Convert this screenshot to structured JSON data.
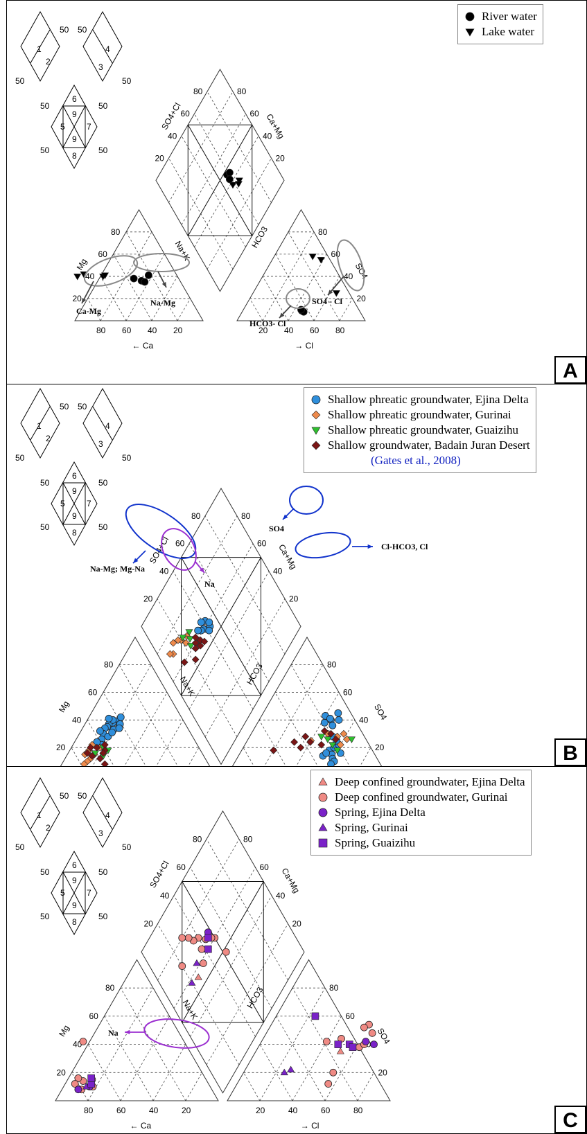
{
  "common": {
    "ticks": [
      "20",
      "40",
      "60",
      "80"
    ],
    "mini": {
      "d1": [
        "1",
        "2"
      ],
      "d2": [
        "4",
        "3"
      ],
      "d3": [
        "6",
        "9",
        "7",
        "5",
        "9",
        "8"
      ],
      "fifty": "50"
    },
    "axes": {
      "mg": "Mg",
      "ca": "Ca",
      "nak": "Na+K",
      "hco3": "HCO3",
      "so4": "SO4",
      "cl": "Cl",
      "so4cl": "SO4+Cl",
      "camg": "Ca+Mg"
    }
  },
  "colors": {
    "blue": "#2f8fdc",
    "orange": "#ee8a4c",
    "green": "#2fbf2f",
    "darkred": "#7a1515",
    "salmon": "#ef8a84",
    "purple": "#7a22c8",
    "ellipse_blue": "#1133cc",
    "ellipse_purple": "#9b2fd0",
    "ellipse_gray": "#888888"
  },
  "panels": [
    {
      "id": "A",
      "label": "A",
      "legend": [
        {
          "symbol": "circle",
          "color": "#000000",
          "text": "River water"
        },
        {
          "symbol": "triangle-down",
          "color": "#000000",
          "text": "Lake water"
        }
      ],
      "annotations": {
        "cation": [
          "Ca-Mg",
          "Na-Mg"
        ],
        "anion": [
          "SO4 - Cl",
          "HCO3- Cl"
        ]
      },
      "chart_data": {
        "type": "scatter",
        "series": [
          {
            "name": "River water",
            "symbol": "circle",
            "cation": [
              [
                35,
                38
              ],
              [
                30,
                36
              ],
              [
                22,
                41
              ],
              [
                28,
                35
              ]
            ],
            "anion": [
              [
                46,
                9
              ],
              [
                48,
                8
              ],
              [
                45,
                10
              ]
            ],
            "diamond": [
              [
                47,
                58
              ],
              [
                46,
                61
              ],
              [
                43,
                58
              ]
            ]
          },
          {
            "name": "Lake water",
            "symbol": "triangle-down",
            "cation": [
              [
                58,
                40
              ],
              [
                72,
                42
              ],
              [
                78,
                40
              ],
              [
                56,
                41
              ]
            ],
            "anion": [
              [
                38,
                55
              ],
              [
                30,
                58
              ],
              [
                65,
                25
              ]
            ],
            "diamond": [
              [
                35,
                65
              ],
              [
                34,
                63
              ],
              [
                38,
                58
              ]
            ]
          }
        ]
      }
    },
    {
      "id": "B",
      "label": "B",
      "legend": [
        {
          "symbol": "circle",
          "color": "#2f8fdc",
          "text": "Shallow phreatic groundwater, Ejina Delta"
        },
        {
          "symbol": "diamond",
          "color": "#ee8a4c",
          "text": "Shallow phreatic groundwater, Gurinai"
        },
        {
          "symbol": "triangle-down",
          "color": "#2fbf2f",
          "text": "Shallow phreatic groundwater, Guaizihu"
        },
        {
          "symbol": "diamond",
          "color": "#7a1515",
          "text": "Shallow groundwater, Badain Juran Desert"
        }
      ],
      "legend_note": "(Gates et al., 2008)",
      "annotations": {
        "cation": [
          "Na-Mg; Mg-Na",
          "Na"
        ],
        "anion": [
          "SO4",
          "Cl-HCO3, Cl"
        ]
      },
      "chart_data": {
        "type": "scatter",
        "series": [
          {
            "name": "Shallow phreatic groundwater, Ejina Delta",
            "symbol": "circle",
            "cation": [
              [
                40,
                40
              ],
              [
                45,
                38
              ],
              [
                42,
                36
              ],
              [
                48,
                37
              ],
              [
                50,
                35
              ],
              [
                38,
                42
              ],
              [
                44,
                40
              ],
              [
                52,
                34
              ],
              [
                55,
                30
              ],
              [
                47,
                33
              ],
              [
                53,
                28
              ],
              [
                58,
                26
              ],
              [
                60,
                22
              ],
              [
                46,
                41
              ],
              [
                41,
                37
              ],
              [
                56,
                32
              ],
              [
                62,
                24
              ],
              [
                49,
                31
              ],
              [
                43,
                34
              ]
            ],
            "anion": [
              [
                42,
                38
              ],
              [
                45,
                40
              ],
              [
                40,
                43
              ],
              [
                48,
                36
              ],
              [
                44,
                41
              ],
              [
                50,
                40
              ],
              [
                47,
                45
              ],
              [
                52,
                28
              ],
              [
                55,
                18
              ],
              [
                58,
                15
              ],
              [
                60,
                12
              ],
              [
                62,
                10
              ],
              [
                57,
                20
              ],
              [
                53,
                14
              ],
              [
                63,
                16
              ],
              [
                59,
                22
              ],
              [
                61,
                8
              ],
              [
                56,
                25
              ],
              [
                54,
                16
              ]
            ],
            "diamond": [
              [
                58,
                40
              ],
              [
                60,
                38
              ],
              [
                62,
                42
              ],
              [
                57,
                43
              ],
              [
                64,
                39
              ],
              [
                56,
                41
              ],
              [
                59,
                44
              ],
              [
                61,
                36
              ],
              [
                63,
                34
              ]
            ]
          },
          {
            "name": "Shallow phreatic groundwater, Gurinai",
            "symbol": "diamond",
            "cation": [
              [
                62,
                20
              ],
              [
                68,
                15
              ],
              [
                72,
                12
              ],
              [
                70,
                18
              ],
              [
                75,
                10
              ],
              [
                66,
                22
              ],
              [
                74,
                15
              ],
              [
                78,
                8
              ]
            ],
            "anion": [
              [
                40,
                25
              ],
              [
                48,
                30
              ],
              [
                55,
                28
              ],
              [
                60,
                22
              ],
              [
                62,
                26
              ],
              [
                58,
                30
              ]
            ],
            "diamond": [
              [
                68,
                25
              ],
              [
                70,
                20
              ],
              [
                72,
                18
              ],
              [
                66,
                22
              ],
              [
                74,
                14
              ],
              [
                70,
                10
              ],
              [
                72,
                8
              ]
            ]
          },
          {
            "name": "Shallow phreatic groundwater, Guaizihu",
            "symbol": "triangle-down",
            "cation": [
              [
                58,
                18
              ],
              [
                63,
                14
              ],
              [
                60,
                20
              ],
              [
                67,
                16
              ]
            ],
            "anion": [
              [
                45,
                28
              ],
              [
                50,
                26
              ],
              [
                55,
                22
              ],
              [
                60,
                18
              ],
              [
                65,
                26
              ]
            ],
            "diamond": [
              [
                65,
                26
              ],
              [
                68,
                28
              ],
              [
                62,
                24
              ],
              [
                70,
                22
              ]
            ]
          },
          {
            "name": "Shallow groundwater, Badain Juran Desert",
            "symbol": "diamond",
            "cation": [
              [
                60,
                18
              ],
              [
                64,
                20
              ],
              [
                66,
                12
              ],
              [
                70,
                14
              ],
              [
                62,
                16
              ],
              [
                68,
                20
              ],
              [
                72,
                16
              ],
              [
                58,
                22
              ],
              [
                65,
                8
              ]
            ],
            "anion": [
              [
                20,
                18
              ],
              [
                30,
                24
              ],
              [
                35,
                28
              ],
              [
                45,
                32
              ],
              [
                50,
                30
              ],
              [
                55,
                26
              ],
              [
                40,
                24
              ],
              [
                48,
                22
              ],
              [
                36,
                20
              ]
            ],
            "diamond": [
              [
                56,
                30
              ],
              [
                58,
                32
              ],
              [
                60,
                28
              ],
              [
                62,
                30
              ],
              [
                55,
                34
              ],
              [
                58,
                26
              ],
              [
                54,
                22
              ],
              [
                60,
                14
              ]
            ]
          }
        ]
      }
    },
    {
      "id": "C",
      "label": "C",
      "legend": [
        {
          "symbol": "triangle-up",
          "color": "#ef8a84",
          "text": "Deep confined groundwater, Ejina Delta"
        },
        {
          "symbol": "circle",
          "color": "#ef8a84",
          "text": "Deep confined groundwater, Gurinai"
        },
        {
          "symbol": "circle",
          "color": "#7a22c8",
          "text": "Spring, Ejina Delta"
        },
        {
          "symbol": "triangle-up",
          "color": "#7a22c8",
          "text": "Spring, Gurinai"
        },
        {
          "symbol": "square",
          "color": "#7a22c8",
          "text": "Spring, Guaizihu"
        }
      ],
      "annotations": {
        "cation": [
          "Na"
        ]
      },
      "chart_data": {
        "type": "scatter",
        "series": [
          {
            "name": "Deep confined groundwater, Ejina Delta",
            "symbol": "triangle-up",
            "cation": [],
            "anion": [
              [
                52,
                35
              ]
            ],
            "diamond": [
              [
                56,
                26
              ]
            ]
          },
          {
            "name": "Deep confined groundwater, Gurinai",
            "symbol": "circle",
            "cation": [
              [
                62,
                42
              ],
              [
                76,
                14
              ],
              [
                80,
                8
              ],
              [
                78,
                16
              ],
              [
                72,
                10
              ],
              [
                82,
                12
              ],
              [
                70,
                15
              ]
            ],
            "anion": [
              [
                40,
                42
              ],
              [
                48,
                44
              ],
              [
                55,
                20
              ],
              [
                56,
                12
              ],
              [
                62,
                38
              ],
              [
                64,
                40
              ],
              [
                65,
                48
              ],
              [
                60,
                54
              ],
              [
                58,
                52
              ]
            ],
            "diamond": [
              [
                48,
                52
              ],
              [
                60,
                50
              ],
              [
                62,
                48
              ],
              [
                65,
                44
              ],
              [
                70,
                40
              ],
              [
                72,
                36
              ],
              [
                64,
                38
              ],
              [
                58,
                34
              ],
              [
                76,
                34
              ],
              [
                80,
                30
              ],
              [
                70,
                20
              ]
            ]
          },
          {
            "name": "Spring, Ejina Delta",
            "symbol": "circle",
            "cation": [
              [
                74,
                10
              ],
              [
                82,
                8
              ]
            ],
            "anion": [
              [
                64,
                42
              ],
              [
                70,
                40
              ]
            ],
            "diamond": [
              [
                66,
                48
              ]
            ]
          },
          {
            "name": "Spring, Gurinai",
            "symbol": "triangle-up",
            "cation": [
              [
                76,
                10
              ]
            ],
            "anion": [
              [
                25,
                20
              ],
              [
                28,
                22
              ]
            ],
            "diamond": [
              [
                62,
                30
              ],
              [
                58,
                20
              ]
            ]
          },
          {
            "name": "Spring, Guaizihu",
            "symbol": "square",
            "cation": [
              [
                72,
                12
              ],
              [
                70,
                16
              ]
            ],
            "anion": [
              [
                48,
                40
              ],
              [
                55,
                40
              ],
              [
                58,
                38
              ],
              [
                24,
                60
              ]
            ],
            "diamond": [
              [
                60,
                42
              ],
              [
                64,
                46
              ]
            ]
          }
        ]
      }
    }
  ]
}
